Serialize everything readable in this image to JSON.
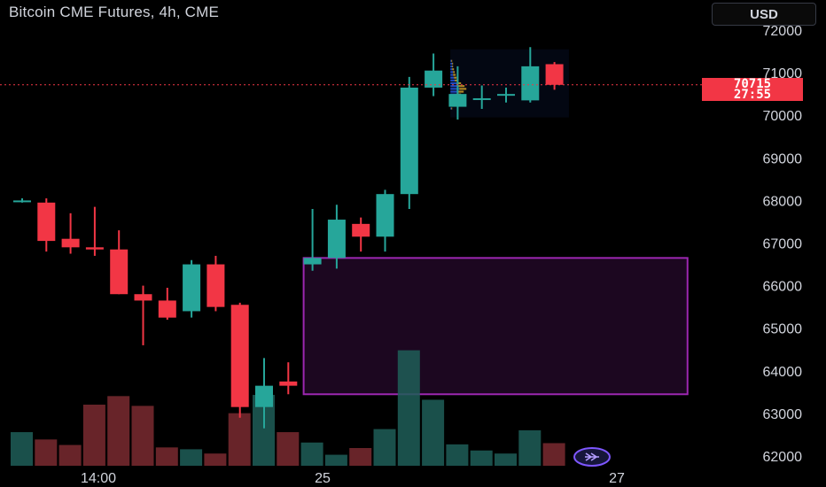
{
  "header": {
    "title": "Bitcoin CME Futures, 4h, CME",
    "currency": "USD"
  },
  "price_tag": {
    "price": "70715",
    "countdown": "27:55"
  },
  "colors": {
    "up": "#26a69a",
    "down": "#f23645",
    "zone": "#9c27b0",
    "last_price_line": "#f23645"
  },
  "go_to_realtime_icon": "double-chevron-right-icon",
  "chart_data": {
    "type": "candlestick",
    "title": "Bitcoin CME Futures, 4h, CME",
    "interval": "4h",
    "y_ticks": [
      72000,
      71000,
      70000,
      69000,
      68000,
      67000,
      66000,
      65000,
      64000,
      63000,
      62000
    ],
    "ylim": [
      61500,
      72300
    ],
    "x_tick_labels": [
      "14:00",
      "25",
      "27"
    ],
    "last_price": 70715,
    "grid": false,
    "candles": [
      {
        "o": 68000,
        "h": 68050,
        "l": 67950,
        "c": 68000
      },
      {
        "o": 67950,
        "h": 68050,
        "l": 66800,
        "c": 67050
      },
      {
        "o": 67100,
        "h": 67700,
        "l": 66750,
        "c": 66900
      },
      {
        "o": 66900,
        "h": 67850,
        "l": 66700,
        "c": 66850
      },
      {
        "o": 66850,
        "h": 67300,
        "l": 65800,
        "c": 65800
      },
      {
        "o": 65800,
        "h": 66000,
        "l": 64600,
        "c": 65650
      },
      {
        "o": 65650,
        "h": 65950,
        "l": 65200,
        "c": 65250
      },
      {
        "o": 65400,
        "h": 66600,
        "l": 65250,
        "c": 66500
      },
      {
        "o": 66500,
        "h": 66700,
        "l": 65400,
        "c": 65500
      },
      {
        "o": 65550,
        "h": 65600,
        "l": 62900,
        "c": 63150
      },
      {
        "o": 63150,
        "h": 64300,
        "l": 62650,
        "c": 63650
      },
      {
        "o": 63750,
        "h": 64200,
        "l": 63450,
        "c": 63650
      },
      {
        "o": 66500,
        "h": 67800,
        "l": 66350,
        "c": 66650
      },
      {
        "o": 66650,
        "h": 67900,
        "l": 66400,
        "c": 67550
      },
      {
        "o": 67450,
        "h": 67600,
        "l": 66800,
        "c": 67150
      },
      {
        "o": 67150,
        "h": 68250,
        "l": 66800,
        "c": 68150
      },
      {
        "o": 68150,
        "h": 70900,
        "l": 67800,
        "c": 70650
      },
      {
        "o": 70650,
        "h": 71450,
        "l": 70450,
        "c": 71050
      },
      {
        "o": 70200,
        "h": 71150,
        "l": 69900,
        "c": 70500
      },
      {
        "o": 70400,
        "h": 70700,
        "l": 70150,
        "c": 70400
      },
      {
        "o": 70500,
        "h": 70650,
        "l": 70300,
        "c": 70500
      },
      {
        "o": 70350,
        "h": 71600,
        "l": 70300,
        "c": 71150
      },
      {
        "o": 71200,
        "h": 71250,
        "l": 70600,
        "c": 70715
      }
    ],
    "volume": [
      0.55,
      0.43,
      0.34,
      1.0,
      1.14,
      0.98,
      0.3,
      0.27,
      0.2,
      0.86,
      1.16,
      0.55,
      0.38,
      0.18,
      0.29,
      0.6,
      1.89,
      1.08,
      0.35,
      0.25,
      0.2,
      0.58,
      0.37
    ],
    "zone": {
      "top": 66650,
      "bottom": 63450,
      "from_candle": 12,
      "to_candle": 27.5
    },
    "volume_profile": {
      "top": 71550,
      "bottom": 69950,
      "from_candle": 17.7,
      "to_candle": 22.6
    }
  }
}
